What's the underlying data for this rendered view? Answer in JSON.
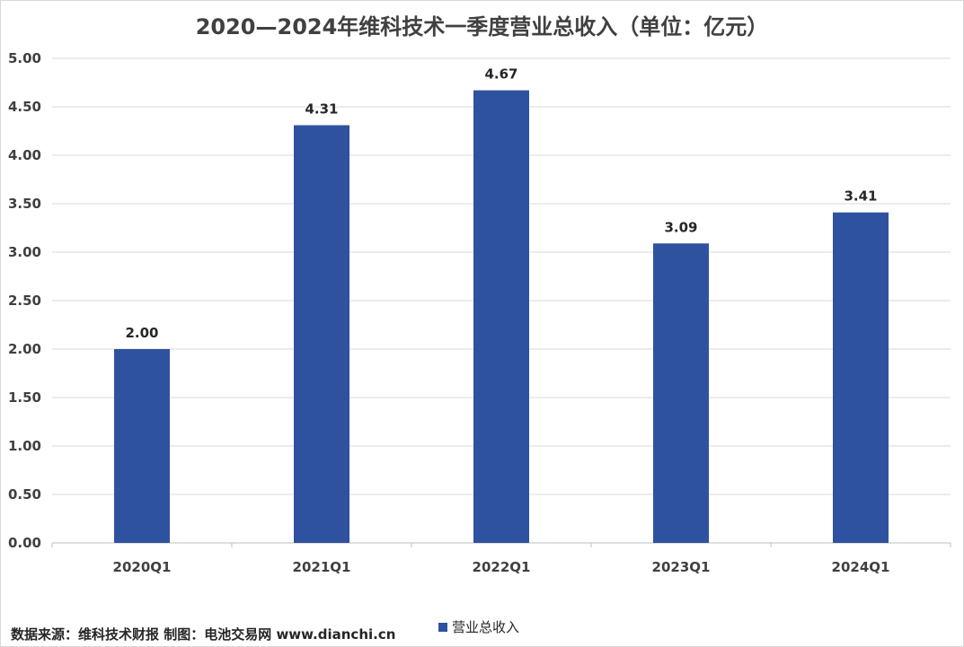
{
  "chart_data": {
    "type": "bar",
    "title": "2020—2024年维科技术一季度营业总收入（单位：亿元）",
    "categories": [
      "2020Q1",
      "2021Q1",
      "2022Q1",
      "2023Q1",
      "2024Q1"
    ],
    "series": [
      {
        "name": "营业总收入",
        "values": [
          2.0,
          4.31,
          4.67,
          3.09,
          3.41
        ]
      }
    ],
    "data_labels": [
      "2.00",
      "4.31",
      "4.67",
      "3.09",
      "3.41"
    ],
    "y_ticks": [
      "0.00",
      "0.50",
      "1.00",
      "1.50",
      "2.00",
      "2.50",
      "3.00",
      "3.50",
      "4.00",
      "4.50",
      "5.00"
    ],
    "ylim": [
      0,
      5
    ],
    "ystep": 0.5,
    "grid": true,
    "legend_position": "bottom",
    "xlabel": "",
    "ylabel": ""
  },
  "colors": {
    "bar": "#2f52a0",
    "grid": "#d9d9d9",
    "axis": "#bfbfbf"
  },
  "source_note": "数据来源：维科技术财报  制图：电池交易网 www.dianchi.cn"
}
